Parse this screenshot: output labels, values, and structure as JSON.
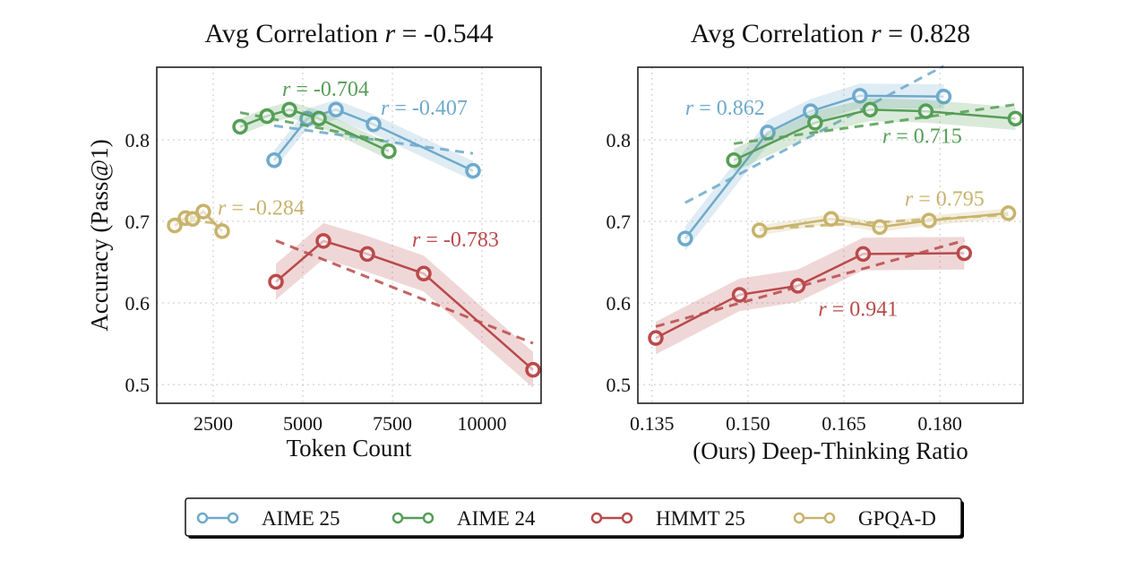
{
  "chart_data": [
    {
      "type": "line",
      "title_prefix": "Avg Correlation ",
      "title_r": "r",
      "title_value": " = -0.544",
      "xlabel": "Token Count",
      "ylabel": "Accuracy (Pass@1)",
      "xlim": [
        925,
        11650
      ],
      "ylim": [
        0.477,
        0.889
      ],
      "xticks": [
        2500,
        5000,
        7500,
        10000
      ],
      "xtick_labels": [
        "2500",
        "5000",
        "7500",
        "10000"
      ],
      "yticks": [
        0.5,
        0.6,
        0.7,
        0.8
      ],
      "ytick_labels": [
        "0.5",
        "0.6",
        "0.7",
        "0.8"
      ],
      "grid": true,
      "series": [
        {
          "name": "AIME 25",
          "x": [
            4200,
            5125,
            5925,
            6975,
            9750
          ],
          "y": [
            0.775,
            0.826,
            0.837,
            0.819,
            0.762
          ],
          "ci": 0.012,
          "r_label": "= -0.407",
          "label_at": [
            7175,
            0.831
          ]
        },
        {
          "name": "AIME 24",
          "x": [
            3250,
            4000,
            4625,
            5450,
            7400
          ],
          "y": [
            0.816,
            0.829,
            0.837,
            0.826,
            0.786
          ],
          "ci": 0.01,
          "r_label": "= -0.704",
          "label_at": [
            4425,
            0.854
          ]
        },
        {
          "name": "HMMT 25",
          "x": [
            4250,
            5575,
            6800,
            8375,
            11425
          ],
          "y": [
            0.626,
            0.676,
            0.66,
            0.636,
            0.518
          ],
          "ci": 0.022,
          "r_label": "= -0.783",
          "label_at": [
            8050,
            0.669
          ]
        },
        {
          "name": "GPQA-D",
          "x": [
            1425,
            1725,
            1925,
            2225,
            2750
          ],
          "y": [
            0.695,
            0.704,
            0.703,
            0.712,
            0.688
          ],
          "ci": 0.004,
          "r_label": "= -0.284",
          "label_at": [
            2625,
            0.708
          ]
        }
      ]
    },
    {
      "type": "line",
      "title_prefix": "Avg Correlation ",
      "title_r": "r",
      "title_value": " = 0.828",
      "xlabel": "(Ours) Deep-Thinking Ratio",
      "ylabel": "",
      "xlim": [
        0.1328,
        0.193
      ],
      "ylim": [
        0.477,
        0.889
      ],
      "xticks": [
        0.135,
        0.15,
        0.165,
        0.18
      ],
      "xtick_labels": [
        "0.135",
        "0.150",
        "0.165",
        "0.180"
      ],
      "yticks": [
        0.5,
        0.6,
        0.7,
        0.8
      ],
      "ytick_labels": [
        "0.5",
        "0.6",
        "0.7",
        "0.8"
      ],
      "grid": true,
      "series": [
        {
          "name": "AIME 25",
          "x": [
            0.1402,
            0.1531,
            0.1598,
            0.1675,
            0.1806
          ],
          "y": [
            0.679,
            0.809,
            0.835,
            0.854,
            0.853
          ],
          "ci": 0.015,
          "r_label": "= 0.862",
          "label_at": [
            0.1402,
            0.831
          ]
        },
        {
          "name": "AIME 24",
          "x": [
            0.1478,
            0.1605,
            0.1691,
            0.1778,
            0.1918
          ],
          "y": [
            0.775,
            0.821,
            0.837,
            0.835,
            0.826
          ],
          "ci": 0.014,
          "r_label": "= 0.715",
          "label_at": [
            0.171,
            0.796
          ]
        },
        {
          "name": "HMMT 25",
          "x": [
            0.1356,
            0.1487,
            0.1578,
            0.168,
            0.1838
          ],
          "y": [
            0.557,
            0.61,
            0.621,
            0.66,
            0.661
          ],
          "ci": 0.02,
          "r_label": "= 0.941",
          "label_at": [
            0.161,
            0.584
          ]
        },
        {
          "name": "GPQA-D",
          "x": [
            0.1518,
            0.163,
            0.1706,
            0.1783,
            0.1907
          ],
          "y": [
            0.689,
            0.703,
            0.693,
            0.701,
            0.71
          ],
          "ci": 0.006,
          "r_label": "= 0.795",
          "label_at": [
            0.1745,
            0.719
          ]
        }
      ]
    }
  ],
  "legend": {
    "placement": "bottom-center",
    "items": [
      "AIME 25",
      "AIME 24",
      "HMMT 25",
      "GPQA-D"
    ]
  },
  "colors": {
    "AIME 25": "#6eaacb",
    "AIME 24": "#559e56",
    "HMMT 25": "#b94a4b",
    "GPQA-D": "#c8b36c"
  }
}
